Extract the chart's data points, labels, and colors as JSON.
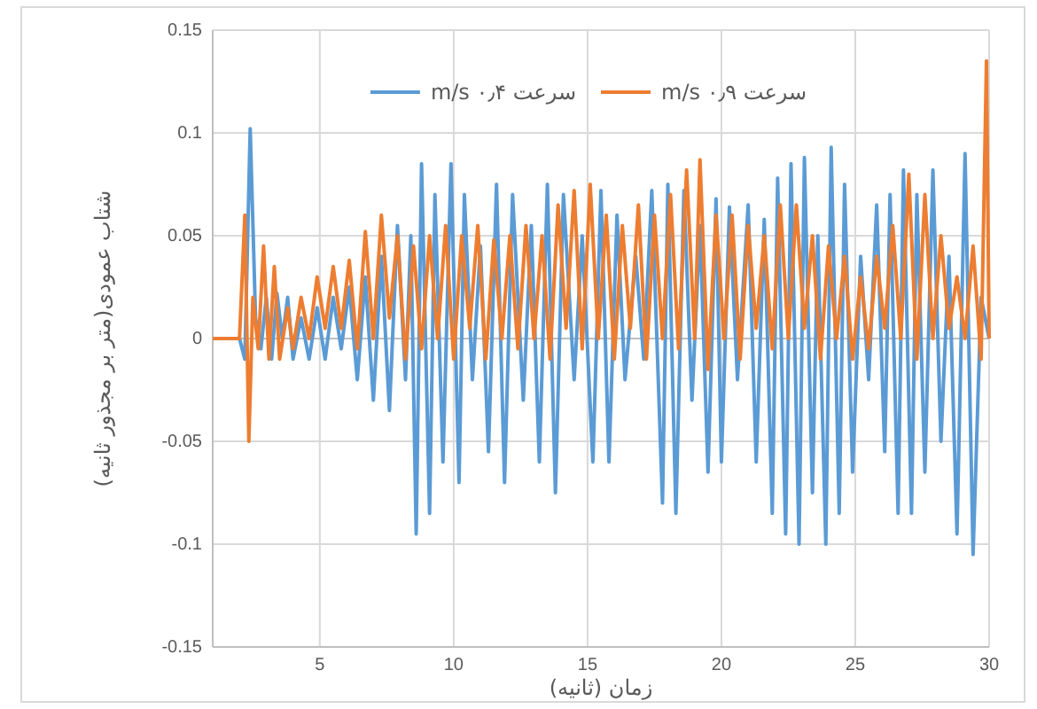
{
  "chart_data": {
    "type": "line",
    "xlabel": "زمان (ثانیه)",
    "ylabel": "شتاب عمودی(متر بر مجذور ثانیه)",
    "xlim": [
      1,
      30
    ],
    "xticks": [
      5,
      10,
      15,
      20,
      25,
      30
    ],
    "ylim": [
      -0.15,
      0.15
    ],
    "yticks": [
      -0.15,
      -0.1,
      -0.05,
      0,
      0.05,
      0.1,
      0.15
    ],
    "grid": true,
    "legend": "top",
    "line_style": "solid",
    "marker": "none",
    "series": [
      {
        "name": "سرعت ۰٫۴ m/s",
        "color": "#5b9bd5",
        "x": [
          1,
          2.0,
          2.2,
          2.4,
          2.6,
          2.8,
          3.0,
          3.2,
          3.4,
          3.6,
          3.8,
          4.0,
          4.3,
          4.6,
          4.9,
          5.2,
          5.5,
          5.8,
          6.1,
          6.4,
          6.7,
          7.0,
          7.3,
          7.6,
          7.9,
          8.2,
          8.4,
          8.6,
          8.8,
          9.1,
          9.3,
          9.6,
          9.9,
          10.2,
          10.4,
          10.7,
          11.0,
          11.3,
          11.6,
          11.9,
          12.2,
          12.6,
          12.9,
          13.2,
          13.5,
          13.8,
          14.1,
          14.5,
          14.8,
          15.2,
          15.5,
          15.8,
          16.1,
          16.4,
          16.8,
          17.1,
          17.4,
          17.8,
          18.0,
          18.3,
          18.6,
          18.9,
          19.2,
          19.5,
          19.8,
          20.0,
          20.3,
          20.6,
          21.0,
          21.3,
          21.6,
          21.9,
          22.1,
          22.4,
          22.6,
          22.9,
          23.1,
          23.4,
          23.6,
          23.9,
          24.1,
          24.4,
          24.6,
          24.9,
          25.2,
          25.5,
          25.8,
          26.1,
          26.3,
          26.6,
          26.8,
          27.1,
          27.3,
          27.6,
          27.9,
          28.2,
          28.5,
          28.8,
          29.1,
          29.4,
          29.7,
          30
        ],
        "values": [
          0,
          0,
          -0.01,
          0.102,
          0.01,
          -0.005,
          0.02,
          -0.01,
          0.022,
          0,
          0.02,
          -0.01,
          0.01,
          -0.01,
          0.015,
          -0.01,
          0.02,
          -0.005,
          0.025,
          -0.02,
          0.03,
          -0.03,
          0.04,
          -0.035,
          0.055,
          -0.02,
          0.05,
          -0.095,
          0.085,
          -0.085,
          0.07,
          -0.06,
          0.085,
          -0.07,
          0.07,
          -0.02,
          0.045,
          -0.055,
          0.075,
          -0.07,
          0.07,
          -0.03,
          0.055,
          -0.06,
          0.075,
          -0.075,
          0.07,
          -0.02,
          0.05,
          -0.06,
          0.072,
          -0.06,
          0.06,
          -0.02,
          0.04,
          -0.01,
          0.072,
          -0.08,
          0.075,
          -0.085,
          0.072,
          -0.03,
          0.055,
          -0.065,
          0.068,
          -0.06,
          0.064,
          -0.02,
          0.065,
          -0.06,
          0.058,
          -0.085,
          0.078,
          -0.095,
          0.085,
          -0.1,
          0.088,
          -0.075,
          0.05,
          -0.1,
          0.093,
          -0.085,
          0.075,
          -0.065,
          0.04,
          -0.02,
          0.065,
          -0.055,
          0.07,
          -0.085,
          0.082,
          -0.085,
          0.07,
          -0.065,
          0.082,
          -0.05,
          0.04,
          -0.095,
          0.09,
          -0.105,
          0.02,
          0
        ]
      },
      {
        "name": "سرعت ۰٫۹ m/s",
        "color": "#ed7d31",
        "x": [
          1,
          2.0,
          2.2,
          2.35,
          2.5,
          2.7,
          2.9,
          3.1,
          3.3,
          3.5,
          3.8,
          4.0,
          4.3,
          4.6,
          4.9,
          5.2,
          5.5,
          5.8,
          6.1,
          6.4,
          6.7,
          7.0,
          7.3,
          7.6,
          7.9,
          8.2,
          8.5,
          8.8,
          9.1,
          9.4,
          9.7,
          10.0,
          10.3,
          10.6,
          10.9,
          11.2,
          11.5,
          11.8,
          12.1,
          12.4,
          12.7,
          13.0,
          13.3,
          13.6,
          13.9,
          14.2,
          14.5,
          14.8,
          15.1,
          15.4,
          15.7,
          16.0,
          16.3,
          16.6,
          16.9,
          17.2,
          17.5,
          17.8,
          18.1,
          18.4,
          18.7,
          19.0,
          19.2,
          19.5,
          19.8,
          20.1,
          20.4,
          20.7,
          21.0,
          21.3,
          21.6,
          21.9,
          22.2,
          22.5,
          22.8,
          23.1,
          23.4,
          23.7,
          24.0,
          24.3,
          24.6,
          24.9,
          25.2,
          25.5,
          25.8,
          26.1,
          26.4,
          26.7,
          27.0,
          27.3,
          27.6,
          27.9,
          28.2,
          28.5,
          28.8,
          29.1,
          29.4,
          29.7,
          29.9,
          30
        ],
        "values": [
          0,
          0,
          0.06,
          -0.05,
          0.02,
          -0.005,
          0.045,
          -0.01,
          0.035,
          -0.01,
          0.015,
          -0.005,
          0.02,
          0,
          0.03,
          0.005,
          0.035,
          0.005,
          0.038,
          -0.005,
          0.052,
          0,
          0.06,
          0.01,
          0.05,
          -0.01,
          0.045,
          -0.005,
          0.05,
          0,
          0.055,
          -0.01,
          0.05,
          0.005,
          0.055,
          -0.01,
          0.048,
          0,
          0.05,
          -0.005,
          0.055,
          0,
          0.05,
          -0.01,
          0.065,
          0.005,
          0.072,
          -0.005,
          0.075,
          0,
          0.06,
          -0.01,
          0.055,
          0.005,
          0.065,
          -0.01,
          0.06,
          0,
          0.07,
          -0.005,
          0.082,
          0,
          0.087,
          -0.015,
          0.06,
          0,
          0.06,
          -0.01,
          0.055,
          0.005,
          0.05,
          -0.005,
          0.065,
          0,
          0.065,
          0.005,
          0.05,
          -0.01,
          0.045,
          0,
          0.04,
          -0.01,
          0.03,
          -0.005,
          0.04,
          0.005,
          0.055,
          0,
          0.08,
          -0.01,
          0.07,
          0,
          0.05,
          0.005,
          0.03,
          0,
          0.045,
          -0.01,
          0.135,
          0
        ]
      }
    ]
  }
}
